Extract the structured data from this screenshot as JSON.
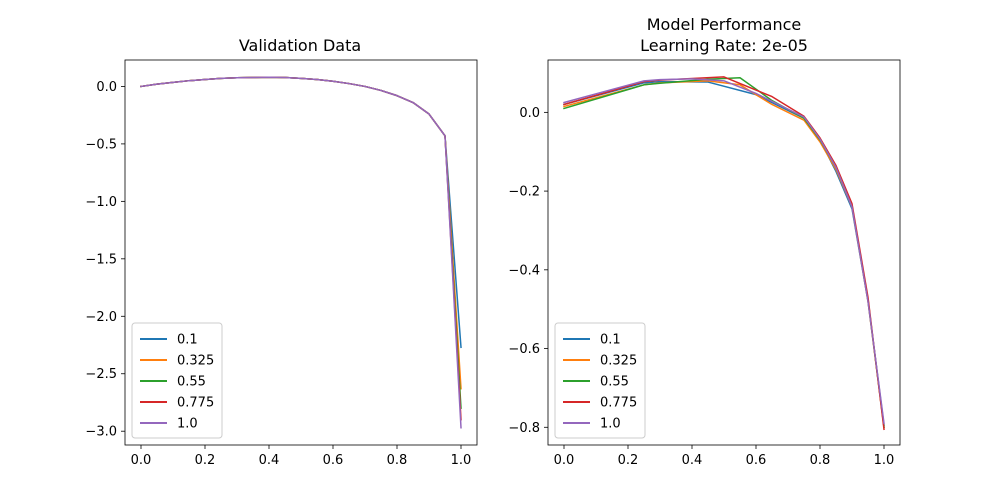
{
  "chart_data": [
    {
      "type": "line",
      "title": "Validation Data",
      "xlabel": "",
      "ylabel": "",
      "xlim": [
        -0.05,
        1.05
      ],
      "ylim": [
        -3.12,
        0.23
      ],
      "xticks": [
        0.0,
        0.2,
        0.4,
        0.6,
        0.8,
        1.0
      ],
      "xtick_labels": [
        "0.0",
        "0.2",
        "0.4",
        "0.6",
        "0.8",
        "1.0"
      ],
      "yticks": [
        0.0,
        -0.5,
        -1.0,
        -1.5,
        -2.0,
        -2.5,
        -3.0
      ],
      "ytick_labels": [
        "0.0",
        "−0.5",
        "−1.0",
        "−1.5",
        "−2.0",
        "−2.5",
        "−3.0"
      ],
      "legend_position": "lower-left",
      "series": [
        {
          "name": "0.1",
          "color": "#1f77b4",
          "x": [
            0,
            0.05,
            0.1,
            0.15,
            0.2,
            0.25,
            0.3,
            0.35,
            0.4,
            0.45,
            0.5,
            0.55,
            0.6,
            0.65,
            0.7,
            0.75,
            0.8,
            0.85,
            0.9,
            0.95,
            1.0
          ],
          "y": [
            0.0,
            0.02,
            0.035,
            0.05,
            0.06,
            0.07,
            0.075,
            0.078,
            0.08,
            0.078,
            0.07,
            0.06,
            0.045,
            0.025,
            0.0,
            -0.035,
            -0.08,
            -0.14,
            -0.24,
            -0.43,
            -2.27
          ]
        },
        {
          "name": "0.325",
          "color": "#ff7f0e",
          "x": [
            0,
            0.05,
            0.1,
            0.15,
            0.2,
            0.25,
            0.3,
            0.35,
            0.4,
            0.45,
            0.5,
            0.55,
            0.6,
            0.65,
            0.7,
            0.75,
            0.8,
            0.85,
            0.9,
            0.95,
            1.0
          ],
          "y": [
            0.0,
            0.02,
            0.035,
            0.05,
            0.06,
            0.07,
            0.075,
            0.078,
            0.08,
            0.078,
            0.07,
            0.06,
            0.045,
            0.025,
            0.0,
            -0.035,
            -0.08,
            -0.14,
            -0.24,
            -0.43,
            -2.63
          ]
        },
        {
          "name": "0.55",
          "color": "#2ca02c",
          "x": [
            0,
            0.05,
            0.1,
            0.15,
            0.2,
            0.25,
            0.3,
            0.35,
            0.4,
            0.45,
            0.5,
            0.55,
            0.6,
            0.65,
            0.7,
            0.75,
            0.8,
            0.85,
            0.9,
            0.95,
            1.0
          ],
          "y": [
            0.0,
            0.02,
            0.035,
            0.05,
            0.06,
            0.07,
            0.075,
            0.078,
            0.08,
            0.078,
            0.07,
            0.06,
            0.045,
            0.025,
            0.0,
            -0.035,
            -0.08,
            -0.14,
            -0.24,
            -0.43,
            -2.8
          ]
        },
        {
          "name": "0.775",
          "color": "#d62728",
          "x": [
            0,
            0.05,
            0.1,
            0.15,
            0.2,
            0.25,
            0.3,
            0.35,
            0.4,
            0.45,
            0.5,
            0.55,
            0.6,
            0.65,
            0.7,
            0.75,
            0.8,
            0.85,
            0.9,
            0.95,
            1.0
          ],
          "y": [
            0.0,
            0.02,
            0.035,
            0.05,
            0.06,
            0.07,
            0.075,
            0.078,
            0.08,
            0.078,
            0.07,
            0.06,
            0.045,
            0.025,
            0.0,
            -0.035,
            -0.08,
            -0.14,
            -0.24,
            -0.43,
            -2.9
          ]
        },
        {
          "name": "1.0",
          "color": "#9467bd",
          "x": [
            0,
            0.05,
            0.1,
            0.15,
            0.2,
            0.25,
            0.3,
            0.35,
            0.4,
            0.45,
            0.5,
            0.55,
            0.6,
            0.65,
            0.7,
            0.75,
            0.8,
            0.85,
            0.9,
            0.95,
            1.0
          ],
          "y": [
            0.0,
            0.02,
            0.035,
            0.05,
            0.06,
            0.07,
            0.075,
            0.078,
            0.08,
            0.078,
            0.07,
            0.06,
            0.045,
            0.025,
            0.0,
            -0.035,
            -0.08,
            -0.14,
            -0.24,
            -0.43,
            -2.97
          ]
        }
      ]
    },
    {
      "type": "line",
      "title": "Model Performance\nLearning Rate: 2e-05",
      "title_lines": [
        "Model Performance",
        "Learning Rate: 2e-05"
      ],
      "xlabel": "",
      "ylabel": "",
      "xlim": [
        -0.05,
        1.05
      ],
      "ylim": [
        -0.845,
        0.133
      ],
      "xticks": [
        0.0,
        0.2,
        0.4,
        0.6,
        0.8,
        1.0
      ],
      "xtick_labels": [
        "0.0",
        "0.2",
        "0.4",
        "0.6",
        "0.8",
        "1.0"
      ],
      "yticks": [
        0.0,
        -0.2,
        -0.4,
        -0.6,
        -0.8
      ],
      "ytick_labels": [
        "0.0",
        "−0.2",
        "−0.4",
        "−0.6",
        "−0.8"
      ],
      "legend_position": "lower-left",
      "series": [
        {
          "name": "0.1",
          "color": "#1f77b4",
          "x": [
            0,
            0.25,
            0.3,
            0.45,
            0.6,
            0.65,
            0.75,
            0.8,
            0.85,
            0.9,
            0.95,
            1.0
          ],
          "y": [
            0.02,
            0.075,
            0.078,
            0.077,
            0.045,
            0.025,
            -0.015,
            -0.07,
            -0.15,
            -0.245,
            -0.48,
            -0.795
          ]
        },
        {
          "name": "0.325",
          "color": "#ff7f0e",
          "x": [
            0,
            0.25,
            0.3,
            0.45,
            0.55,
            0.65,
            0.75,
            0.8,
            0.85,
            0.9,
            0.95,
            1.0
          ],
          "y": [
            0.015,
            0.07,
            0.075,
            0.08,
            0.07,
            0.02,
            -0.02,
            -0.075,
            -0.145,
            -0.24,
            -0.48,
            -0.8
          ]
        },
        {
          "name": "0.55",
          "color": "#2ca02c",
          "x": [
            0,
            0.25,
            0.3,
            0.45,
            0.55,
            0.65,
            0.75,
            0.8,
            0.85,
            0.9,
            0.95,
            1.0
          ],
          "y": [
            0.01,
            0.07,
            0.074,
            0.084,
            0.088,
            0.03,
            -0.015,
            -0.07,
            -0.14,
            -0.238,
            -0.475,
            -0.8
          ]
        },
        {
          "name": "0.775",
          "color": "#d62728",
          "x": [
            0,
            0.25,
            0.3,
            0.4,
            0.5,
            0.65,
            0.75,
            0.8,
            0.85,
            0.9,
            0.95,
            1.0
          ],
          "y": [
            0.02,
            0.078,
            0.082,
            0.086,
            0.09,
            0.04,
            -0.01,
            -0.065,
            -0.135,
            -0.232,
            -0.47,
            -0.805
          ]
        },
        {
          "name": "1.0",
          "color": "#9467bd",
          "x": [
            0,
            0.25,
            0.3,
            0.4,
            0.5,
            0.6,
            0.75,
            0.8,
            0.85,
            0.9,
            0.95,
            1.0
          ],
          "y": [
            0.025,
            0.08,
            0.083,
            0.085,
            0.08,
            0.048,
            -0.012,
            -0.068,
            -0.14,
            -0.24,
            -0.48,
            -0.79
          ]
        }
      ]
    }
  ]
}
